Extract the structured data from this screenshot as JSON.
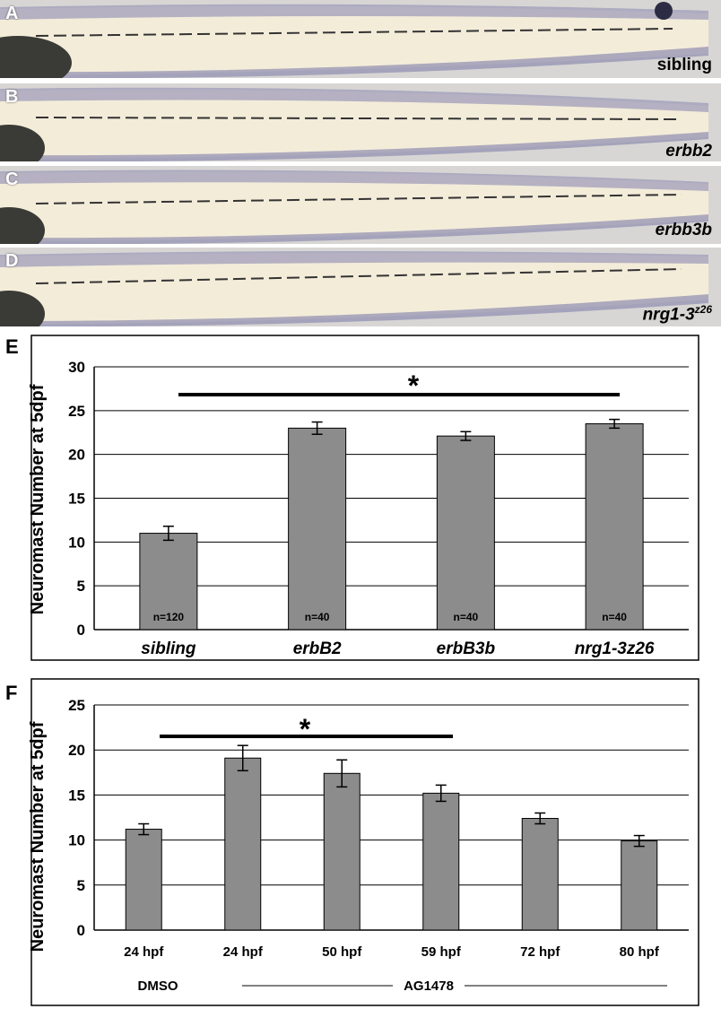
{
  "panels": [
    {
      "letter": "A",
      "genotype": "sibling",
      "sup": ""
    },
    {
      "letter": "B",
      "genotype": "erbb2",
      "sup": ""
    },
    {
      "letter": "C",
      "genotype": "erbb3b",
      "sup": ""
    },
    {
      "letter": "D",
      "genotype": "nrg1-3",
      "sup": "z26"
    }
  ],
  "chart_data": [
    {
      "panel": "E",
      "type": "bar",
      "ylabel": "Neuromast Number at 5dpf",
      "ylim": [
        0,
        30
      ],
      "yticks": [
        "0",
        "5",
        "10",
        "15",
        "20",
        "25",
        "30"
      ],
      "grid": true,
      "categories": [
        "sibling",
        "erbB2",
        "erbB3b",
        "nrg1-3z26"
      ],
      "values": [
        11,
        23,
        22.1,
        23.5
      ],
      "errors": [
        0.8,
        0.7,
        0.5,
        0.5
      ],
      "n_labels": [
        "n=120",
        "n=40",
        "n=40",
        "n=40"
      ],
      "significance": "*",
      "bar_color": "#8c8c8c"
    },
    {
      "panel": "F",
      "type": "bar",
      "ylabel": "Neuromast Number at 5dpf",
      "ylim": [
        0,
        25
      ],
      "yticks": [
        "0",
        "5",
        "10",
        "15",
        "20",
        "25"
      ],
      "grid": true,
      "categories": [
        "24 hpf",
        "24 hpf",
        "50 hpf",
        "59 hpf",
        "72 hpf",
        "80 hpf"
      ],
      "values": [
        11.2,
        19.1,
        17.4,
        15.2,
        12.4,
        9.9
      ],
      "errors": [
        0.6,
        1.4,
        1.5,
        0.9,
        0.6,
        0.6
      ],
      "groups": [
        "DMSO",
        "AG1478"
      ],
      "significance": "*",
      "bar_color": "#8c8c8c"
    }
  ]
}
